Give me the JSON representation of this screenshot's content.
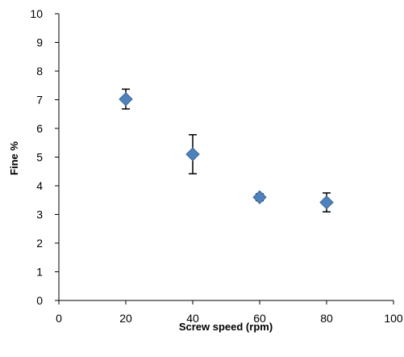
{
  "chart_data": {
    "type": "scatter",
    "title": "",
    "xlabel": "Screw speed (rpm)",
    "ylabel": "Fine %",
    "xlim": [
      0,
      100
    ],
    "ylim": [
      0,
      10
    ],
    "x_ticks": [
      "0",
      "20",
      "40",
      "60",
      "80",
      "100"
    ],
    "y_ticks": [
      "0",
      "1",
      "2",
      "3",
      "4",
      "5",
      "6",
      "7",
      "8",
      "9",
      "10"
    ],
    "grid": false,
    "legend": "none",
    "marker": "diamond",
    "marker_color": "#4F81BD",
    "error_bars": true,
    "points": [
      {
        "x": 20,
        "y": 7.02,
        "err_low": 6.68,
        "err_high": 7.37
      },
      {
        "x": 40,
        "y": 5.1,
        "err_low": 4.42,
        "err_high": 5.78
      },
      {
        "x": 60,
        "y": 3.6,
        "err_low": 3.48,
        "err_high": 3.72
      },
      {
        "x": 80,
        "y": 3.42,
        "err_low": 3.09,
        "err_high": 3.75
      }
    ]
  }
}
